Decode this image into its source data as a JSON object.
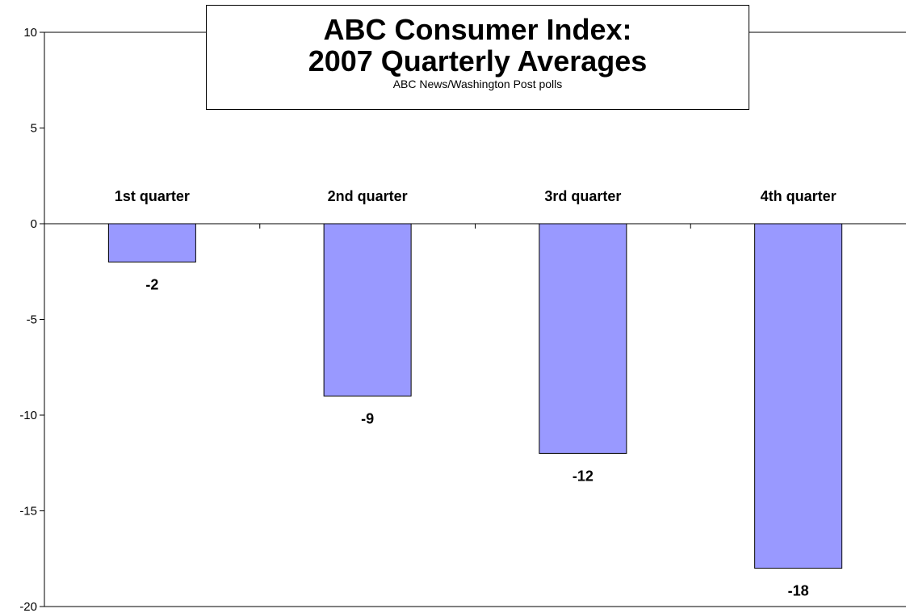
{
  "chart_data": {
    "type": "bar",
    "title_lines": [
      "ABC Consumer Index:",
      "2007 Quarterly Averages"
    ],
    "subtitle": "ABC News/Washington Post polls",
    "categories": [
      "1st quarter",
      "2nd quarter",
      "3rd quarter",
      "4th quarter"
    ],
    "values": [
      -2,
      -9,
      -12,
      -18
    ],
    "data_labels": [
      "-2",
      "-9",
      "-12",
      "-18"
    ],
    "ylim": [
      -20,
      10
    ],
    "yticks": [
      10,
      5,
      0,
      -5,
      -10,
      -15,
      -20
    ],
    "xlabel": "",
    "ylabel": "",
    "bar_color": "#9999ff",
    "grid": false,
    "legend": "none"
  }
}
